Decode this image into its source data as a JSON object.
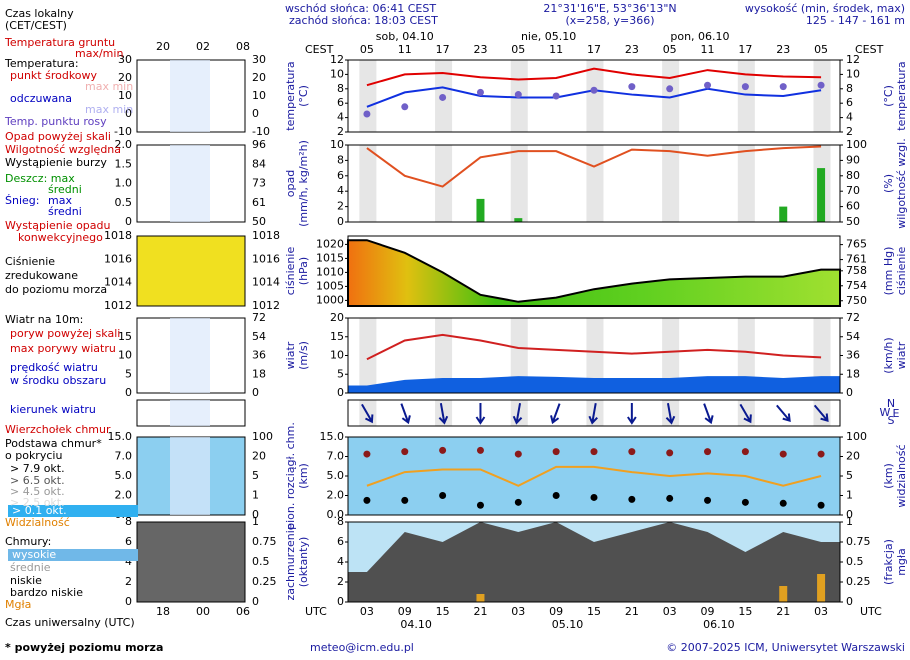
{
  "header": {
    "sunrise": "wschód słońca: 06:41 CEST",
    "sunset": "zachód słońca: 18:03 CEST",
    "coords": "21°31'16\"E, 53°36'13\"N",
    "grid_point": "(x=258, y=366)",
    "height_title": "wysokość (min, środek, max)",
    "height_values": "125 - 147 - 161 m"
  },
  "time_axis": {
    "top_zone": "CEST",
    "bottom_zone": "UTC",
    "top_dates": [
      "sob, 04.10",
      "nie, 05.10",
      "pon, 06.10"
    ],
    "bottom_dates": [
      "04.10",
      "05.10",
      "06.10"
    ]
  },
  "chart_data": [
    {
      "type": "line",
      "ylabel": "temperatura",
      "ylabel_unit": "(°C)",
      "categories": [
        "05",
        "11",
        "17",
        "23",
        "05",
        "11",
        "17",
        "23",
        "05",
        "11",
        "17",
        "23",
        "05"
      ],
      "ylim": [
        2,
        12
      ],
      "yticks": [
        2,
        4,
        6,
        8,
        10,
        12
      ],
      "y2lim": [
        2,
        12
      ],
      "y2ticks": [
        2,
        4,
        6,
        8,
        10,
        12
      ],
      "series": [
        {
          "name": "punkt środkowy",
          "type": "line",
          "color": "#e00000",
          "values": [
            8.5,
            10,
            10.2,
            9.6,
            9.3,
            9.5,
            10.8,
            10,
            9.5,
            10.6,
            10,
            9.7,
            9.6
          ]
        },
        {
          "name": "odczuwana",
          "type": "line",
          "color": "#1030e0",
          "values": [
            5.5,
            7.5,
            8.2,
            7,
            6.8,
            6.8,
            7.8,
            7.2,
            6.8,
            8,
            7.2,
            7,
            7.8
          ]
        },
        {
          "name": "Temp. punktu rosy",
          "type": "dots",
          "color": "#7060c8",
          "values": [
            4.5,
            5.5,
            6.8,
            7.5,
            7.2,
            7,
            7.8,
            8.3,
            8,
            8.5,
            8.3,
            8.3,
            8.5
          ]
        }
      ]
    },
    {
      "type": "bar",
      "ylabel": "opad",
      "ylabel_unit": "(mm/h, kg/m²h)",
      "y2label": "wilgotność wzgl.",
      "y2label_unit": "(%)",
      "ylim": [
        0,
        10
      ],
      "yticks": [
        0,
        2,
        4,
        6,
        8,
        10
      ],
      "y2lim": [
        50,
        100
      ],
      "y2ticks": [
        50,
        60,
        70,
        80,
        90,
        100
      ],
      "series": [
        {
          "name": "Deszcz: max",
          "type": "bar",
          "color": "#22aa22",
          "values": [
            0,
            0,
            0,
            3,
            0.5,
            0,
            0,
            0,
            0,
            0,
            0,
            2,
            7
          ]
        },
        {
          "name": "Wilgotność względna",
          "type": "line",
          "axis": "y2",
          "color": "#e05020",
          "values": [
            98,
            80,
            73,
            92,
            96,
            96,
            86,
            97,
            96,
            93,
            96,
            98,
            99
          ]
        }
      ]
    },
    {
      "type": "area",
      "ylabel": "ciśnienie",
      "ylabel_unit": "(hPa)",
      "y2label": "ciśnienie",
      "y2label_unit": "(mm Hg)",
      "ylim": [
        998,
        1023
      ],
      "yticks": [
        1000,
        1005,
        1010,
        1015,
        1020
      ],
      "y2lim": [
        748.6,
        767.3
      ],
      "y2ticks": [
        750,
        754,
        758,
        761,
        765
      ],
      "series": [
        {
          "name": "Ciśnienie",
          "type": "area",
          "color": "#000000",
          "values": [
            1021.5,
            1017,
            1010,
            1002,
            999.5,
            1001,
            1004,
            1006,
            1007.5,
            1008,
            1008.5,
            1008.5,
            1011
          ]
        }
      ]
    },
    {
      "type": "line",
      "ylabel": "wiatr",
      "ylabel_unit": "(m/s)",
      "y2label": "wiatr",
      "y2label_unit": "(km/h)",
      "ylim": [
        0,
        20
      ],
      "yticks": [
        0,
        5,
        10,
        15,
        20
      ],
      "y2lim": [
        0,
        72
      ],
      "y2ticks": [
        0,
        18,
        36,
        54,
        72
      ],
      "series": [
        {
          "name": "prędkość wiatru",
          "type": "area",
          "color": "#1060e0",
          "values": [
            2,
            3.5,
            4,
            4,
            4.5,
            4.3,
            4,
            4,
            4,
            4.5,
            4.5,
            4,
            4.5
          ]
        },
        {
          "name": "max porywy wiatru",
          "type": "line",
          "color": "#d02020",
          "values": [
            9,
            14,
            15.5,
            14,
            12,
            11.5,
            11,
            10.5,
            11,
            11.5,
            11,
            10,
            9.5
          ]
        }
      ]
    },
    {
      "type": "arrows",
      "compass": [
        "N",
        "W",
        "E",
        "S"
      ],
      "series": [
        {
          "name": "kierunek wiatru",
          "type": "arrows",
          "color": "#0a1a90",
          "values": [
            330,
            340,
            350,
            0,
            10,
            20,
            10,
            0,
            350,
            340,
            330,
            320,
            320
          ]
        }
      ]
    },
    {
      "type": "dots",
      "scale": "piecewise",
      "ylabel": "pion. rozciągł. chm.",
      "ylabel_unit": "(km)",
      "y2label": "widzialność",
      "y2label_unit": "(km)",
      "ylim": [
        0,
        15
      ],
      "yticks": [
        {
          "value": 0,
          "label": "0.0"
        },
        {
          "value": 2,
          "label": "2.0"
        },
        {
          "value": 5,
          "label": "5.0"
        },
        {
          "value": 7,
          "label": "7.0"
        },
        {
          "value": 15,
          "label": "15.0"
        }
      ],
      "y2lim": [
        0,
        100
      ],
      "y2ticks": [
        0,
        1,
        5,
        20,
        100
      ],
      "series": [
        {
          "name": "Wierzchołek chmur",
          "type": "dots",
          "color": "#8b1a1a",
          "values": [
            8,
            9,
            9.5,
            9.5,
            8,
            9,
            9,
            9,
            8.5,
            9,
            9,
            8,
            8
          ]
        },
        {
          "name": "> 7.9 okt.",
          "type": "dots",
          "color": "#000000",
          "values": [
            1.5,
            1.5,
            2,
            1,
            1.3,
            2,
            1.8,
            1.6,
            1.7,
            1.5,
            1.3,
            1.2,
            1
          ]
        },
        {
          "name": "Widzialność",
          "type": "line",
          "axis": "y2",
          "color": "#f0a020",
          "values": [
            3,
            8,
            10,
            10,
            3,
            12,
            12,
            8,
            5,
            7,
            5,
            3,
            5
          ]
        }
      ]
    },
    {
      "type": "area",
      "ylabel": "zachmurzenie",
      "ylabel_unit": "(oktanty)",
      "y2label": "mgła",
      "y2label_unit": "(frakcja)",
      "categories": [
        "03",
        "09",
        "15",
        "21",
        "03",
        "09",
        "15",
        "21",
        "03",
        "09",
        "15",
        "21",
        "03"
      ],
      "ylim": [
        0,
        8
      ],
      "yticks": [
        0,
        2,
        4,
        6,
        8
      ],
      "y2lim": [
        0,
        1
      ],
      "y2ticks": [
        0,
        0.25,
        0.5,
        0.75,
        1
      ],
      "series": [
        {
          "name": "niskie",
          "type": "area",
          "color": "#505050",
          "values": [
            3,
            7,
            6,
            8,
            7,
            8,
            6,
            7,
            8,
            7,
            5,
            7,
            6
          ]
        },
        {
          "name": "Mgła",
          "type": "bar",
          "axis": "y2",
          "color": "#e0a020",
          "values": [
            0,
            0,
            0,
            0.1,
            0,
            0,
            0,
            0,
            0,
            0,
            0,
            0.2,
            0.35
          ]
        }
      ]
    }
  ],
  "legend": {
    "local_time": [
      "Czas lokalny",
      "(CET/CEST)"
    ],
    "mini_hours_top": [
      "20",
      "02",
      "08"
    ],
    "ground_temp": "Temperatura gruntu",
    "ground_temp_sub": "max/min",
    "temp_heading": "Temperatura:",
    "max_min": "max min",
    "mini_temp_ticks": [
      30,
      20,
      10,
      0,
      -10
    ],
    "precip_above": "Opad powyżej skali",
    "storm": "Wystąpienie burzy",
    "rain_mean": "średni",
    "snow": "Śnieg:",
    "snow_max": "max",
    "snow_mean": "średni",
    "convective": [
      "Wystąpienie opadu",
      "konwekcyjnego"
    ],
    "mini_precip_ticks": [
      {
        "value": 2,
        "label": "2.0"
      },
      {
        "value": 1.5,
        "label": "1.5"
      },
      {
        "value": 1,
        "label": "1.0"
      },
      {
        "value": 0.5,
        "label": "0.5"
      },
      0
    ],
    "mini_humidity_ticks": [
      96,
      84,
      73,
      61,
      50
    ],
    "pressure": [
      "zredukowane",
      "do poziomu morza"
    ],
    "mini_pressure_ticks": [
      1018,
      1016,
      1014,
      1012
    ],
    "wind_heading": "Wiatr na 10m:",
    "gust_above": "poryw powyżej skali",
    "wind_mid": "w środku obszaru",
    "mini_wind_ticks": [
      15,
      10,
      5,
      0
    ],
    "mini_wind_kmh_ticks": [
      72,
      54,
      36,
      18,
      0
    ],
    "cloud_base": [
      "Podstawa chmur*",
      "o pokryciu"
    ],
    "okta_levels": [
      "> 6.5 okt.",
      "> 4.5 okt.",
      "> 2.5 okt.",
      "> 0.1 okt."
    ],
    "mini_cloud_ticks": [
      {
        "value": 15,
        "label": "15.0"
      },
      {
        "value": 7,
        "label": "7.0"
      },
      {
        "value": 5,
        "label": "5.0"
      },
      {
        "value": 2,
        "label": "2.0"
      },
      {
        "value": 0,
        "label": "0.0"
      }
    ],
    "mini_vis_ticks": [
      100,
      20,
      5,
      1,
      0
    ],
    "clouds_heading": "Chmury:",
    "high": "wysokie",
    "mid": "średnie",
    "very_low": "bardzo niskie",
    "mini_okta_ticks": [
      8,
      6,
      4,
      2,
      0
    ],
    "mini_fog_ticks": [
      1,
      0.75,
      0.5,
      0.25,
      0
    ],
    "mini_hours_bottom": [
      "18",
      "00",
      "06"
    ],
    "utc": "Czas uniwersalny (UTC)",
    "footnote": "* powyżej poziomu morza"
  },
  "footer": {
    "email": "meteo@icm.edu.pl",
    "copyright": "© 2007-2025 ICM, Uniwersytet Warszawski"
  }
}
